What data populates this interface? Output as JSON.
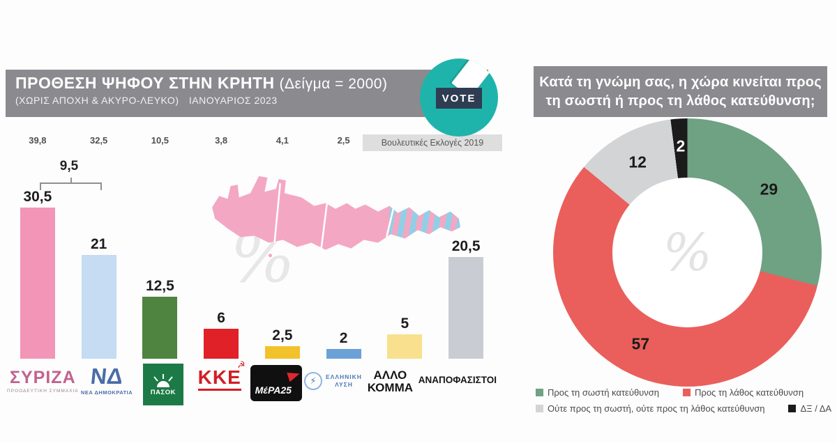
{
  "left_chart": {
    "title": "ΠΡΟΘΕΣΗ ΨΗΦΟΥ ΣΤΗΝ ΚΡΗΤΗ",
    "sample": "(Δείγμα = 2000)",
    "subtitle": "(ΧΩΡΙΣ ΑΠΟΧΗ & ΑΚΥΡΟ-ΛΕΥΚΟ)",
    "date": "ΙΑΝΟΥΑΡΙΟΣ 2023",
    "vote_badge": "VOTE",
    "prev_box": "Βουλευτικές Εκλογές 2019",
    "gap_label": "9,5",
    "watermark": "%"
  },
  "right_chart": {
    "title1": "Κατά τη γνώμη σας, η χώρα κινείται προς",
    "title2": "τη σωστή ή προς τη λάθος κατεύθυνση;",
    "watermark": "%"
  },
  "parties": [
    {
      "name": "ΣΥΡΙΖΑ",
      "logo_main": "ΣΥΡΙΖΑ",
      "logo_sub": "ΠΡΟΟΔΕΥΤΙΚΗ ΣΥΜΜΑΧΙΑ"
    },
    {
      "name": "ΝΕΑ ΔΗΜΟΚΡΑΤΙΑ",
      "logo_main": "ΝΔ",
      "logo_sub": "ΝΕΑ ΔΗΜΟΚΡΑΤΙΑ"
    },
    {
      "name": "ΠΑΣΟΚ",
      "logo_main": "ΠΑΣΟΚ"
    },
    {
      "name": "ΚΚΕ",
      "logo_main": "ΚΚΕ"
    },
    {
      "name": "ΜέΡΑ25",
      "logo_main": "ΜέΡΑ25"
    },
    {
      "name": "ΕΛΛΗΝΙΚΗ ΛΥΣΗ",
      "logo_line1": "ΕΛΛΗΝΙΚΗ",
      "logo_line2": "ΛΥΣΗ"
    },
    {
      "name": "ΑΛΛΟ ΚΟΜΜΑ",
      "logo_line1": "ΑΛΛΟ",
      "logo_line2": "ΚΟΜΜΑ"
    },
    {
      "name": "ΑΝΑΠΟΦΑΣΙΣΤΟΙ",
      "logo_main": "ΑΝΑΠΟΦΑΣΙΣΤΟΙ"
    }
  ],
  "chart_data": [
    {
      "type": "bar",
      "title": "ΠΡΟΘΕΣΗ ΨΗΦΟΥ ΣΤΗΝ ΚΡΗΤΗ (Δείγμα = 2000)",
      "subtitle": "(ΧΩΡΙΣ ΑΠΟΧΗ & ΑΚΥΡΟ-ΛΕΥΚΟ) ΙΑΝΟΥΑΡΙΟΣ 2023",
      "categories": [
        "ΣΥΡΙΖΑ",
        "ΝΕΑ ΔΗΜΟΚΡΑΤΙΑ",
        "ΠΑΣΟΚ",
        "ΚΚΕ",
        "ΜέΡΑ25",
        "ΕΛΛΗΝΙΚΗ ΛΥΣΗ",
        "ΑΛΛΟ ΚΟΜΜΑ",
        "ΑΝΑΠΟΦΑΣΙΣΤΟΙ"
      ],
      "series": [
        {
          "name": "Πρόθεση ψήφου Ιανουάριος 2023",
          "values": [
            30.5,
            21,
            12.5,
            6,
            2.5,
            2,
            5,
            20.5
          ],
          "labels": [
            "30,5",
            "21",
            "12,5",
            "6",
            "2,5",
            "2",
            "5",
            "20,5"
          ]
        },
        {
          "name": "Βουλευτικές Εκλογές 2019",
          "values": [
            39.8,
            32.5,
            10.5,
            3.8,
            4.1,
            2.5,
            null,
            null
          ],
          "labels": [
            "39,8",
            "32,5",
            "10,5",
            "3,8",
            "4,1",
            "2,5",
            "",
            ""
          ]
        }
      ],
      "annotations": [
        {
          "label": "9,5",
          "note": "διαφορά ΣΥΡΙΖΑ - ΝΔ"
        }
      ],
      "bar_colors": [
        "#f295b6",
        "#c5dcf2",
        "#4e8440",
        "#e02127",
        "#f2c22b",
        "#6ba1d6",
        "#f8e08e",
        "#c9cdd3"
      ],
      "unit": "%",
      "ylim": [
        0,
        40
      ],
      "grid": false,
      "legend_position": "none"
    },
    {
      "type": "pie",
      "subtype": "donut",
      "title": "Κατά τη γνώμη σας, η χώρα κινείται προς τη σωστή ή προς τη λάθος κατεύθυνση;",
      "slices": [
        {
          "label": "Προς τη σωστή κατεύθυνση",
          "value": 29,
          "display": "29",
          "color": "#6fa183",
          "label_color": "#1b1b1b"
        },
        {
          "label": "Προς τη λάθος κατεύθυνση",
          "value": 57,
          "display": "57",
          "color": "#ea5f5b",
          "label_color": "#1b1b1b"
        },
        {
          "label": "Ούτε προς τη σωστή, ούτε προς τη λάθος κατεύθυνση",
          "value": 12,
          "display": "12",
          "color": "#d3d4d6",
          "label_color": "#1b1b1b"
        },
        {
          "label": "ΔΞ / ΔΑ",
          "value": 2,
          "display": "2",
          "color": "#1b1b1b",
          "label_color": "#ffffff"
        }
      ],
      "unit": "%",
      "legend_position": "bottom",
      "center_watermark": "%"
    }
  ]
}
